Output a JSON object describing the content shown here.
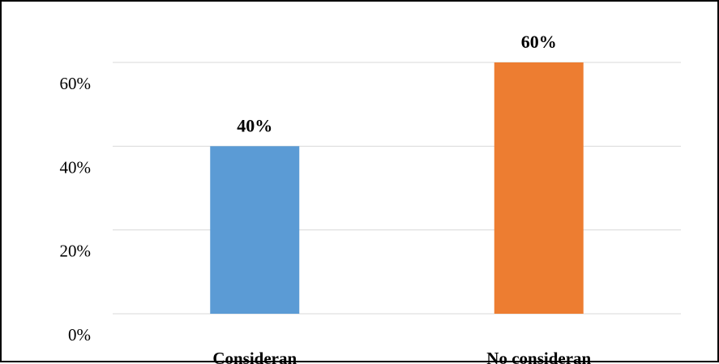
{
  "chart_data": {
    "type": "bar",
    "categories": [
      "Consideran",
      "No consideran"
    ],
    "values": [
      40,
      60
    ],
    "data_labels": [
      "40%",
      "60%"
    ],
    "bar_colors": [
      "#5b9bd5",
      "#ed7d31"
    ],
    "y_ticks": [
      0,
      20,
      40,
      60
    ],
    "y_tick_labels": [
      "0%",
      "20%",
      "40%",
      "60%"
    ],
    "ylim": [
      0,
      60
    ],
    "grid": true,
    "legend": "none",
    "title": "",
    "xlabel": "",
    "ylabel": ""
  }
}
